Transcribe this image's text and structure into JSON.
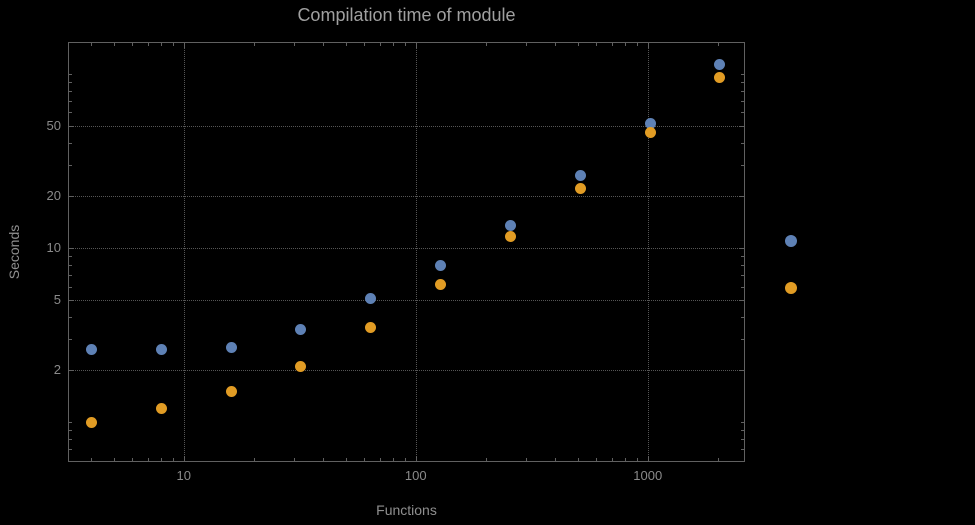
{
  "chart_data": {
    "type": "scatter",
    "title": "Compilation time of module",
    "xlabel": "Functions",
    "ylabel": "Seconds",
    "xscale": "log",
    "yscale": "log",
    "xlim": [
      3.2,
      2600
    ],
    "ylim": [
      0.6,
      150
    ],
    "x_ticks": [
      10,
      100,
      1000
    ],
    "y_ticks": [
      2,
      5,
      10,
      20,
      50
    ],
    "grid": true,
    "x": [
      4,
      8,
      16,
      32,
      64,
      128,
      256,
      512,
      1024,
      2048
    ],
    "series": [
      {
        "name": "blue",
        "color": "#5e81b5",
        "values": [
          2.6,
          2.6,
          2.7,
          3.4,
          5.1,
          7.9,
          13.5,
          26,
          52,
          113
        ]
      },
      {
        "name": "orange",
        "color": "#e19c24",
        "values": [
          1.0,
          1.2,
          1.5,
          2.1,
          3.5,
          6.2,
          11.6,
          22,
          46,
          95
        ]
      }
    ],
    "legend": {
      "position": "right",
      "markers": [
        {
          "name": "blue",
          "color": "#5e81b5"
        },
        {
          "name": "orange",
          "color": "#e19c24"
        }
      ]
    },
    "colors": {
      "background": "#000000",
      "frame": "#606060",
      "grid": "#565656",
      "title": "#a0a0a0",
      "axis_labels": "#8f8f8f",
      "tick_labels": "#8a8a8a"
    }
  }
}
